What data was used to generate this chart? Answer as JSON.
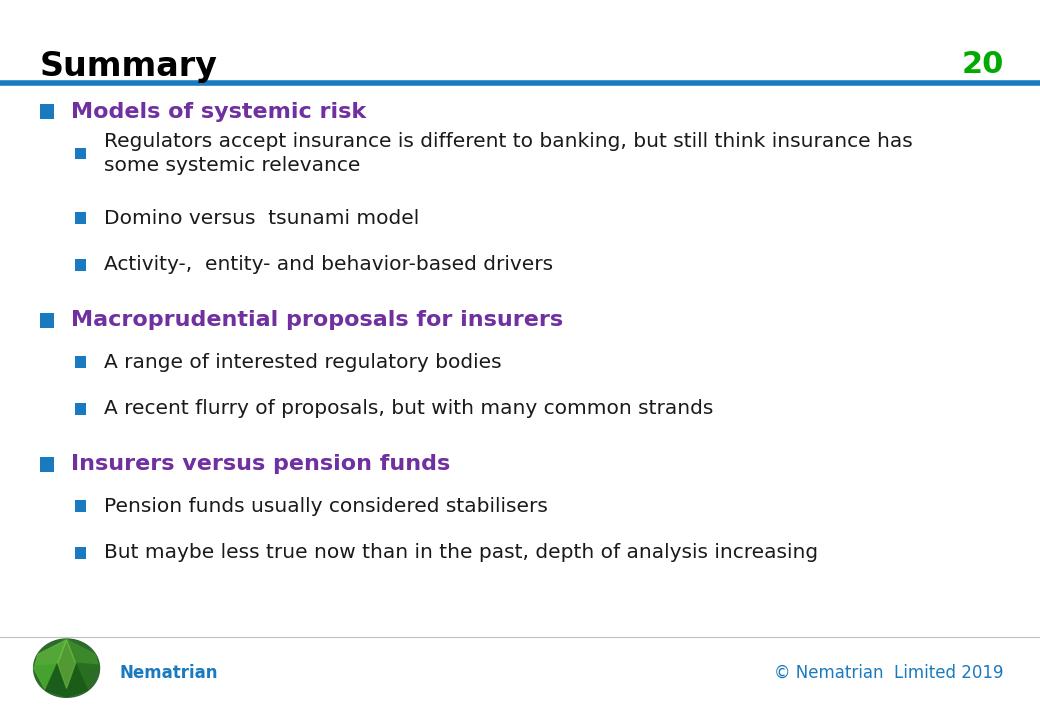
{
  "title": "Summary",
  "slide_number": "20",
  "title_color": "#000000",
  "title_fontsize": 24,
  "slide_number_color": "#00aa00",
  "header_line_color": "#1a7abf",
  "background_color": "#ffffff",
  "heading_color": "#7030a0",
  "sub_bullet_color": "#1a1a1a",
  "bullet_square_color": "#1a7abf",
  "footer_text_color": "#1a7abf",
  "sections": [
    {
      "heading": "Models of systemic risk",
      "sub_items": [
        "Regulators accept insurance is different to banking, but still think insurance has\nsome systemic relevance",
        "Domino versus  tsunami model",
        "Activity-,  entity- and behavior-based drivers"
      ]
    },
    {
      "heading": "Macroprudential proposals for insurers",
      "sub_items": [
        "A range of interested regulatory bodies",
        "A recent flurry of proposals, but with many common strands"
      ]
    },
    {
      "heading": "Insurers versus pension funds",
      "sub_items": [
        "Pension funds usually considered stabilisers",
        "But maybe less true now than in the past, depth of analysis increasing"
      ]
    }
  ],
  "footer_left": "Nematrian",
  "footer_right": "© Nematrian  Limited 2019"
}
